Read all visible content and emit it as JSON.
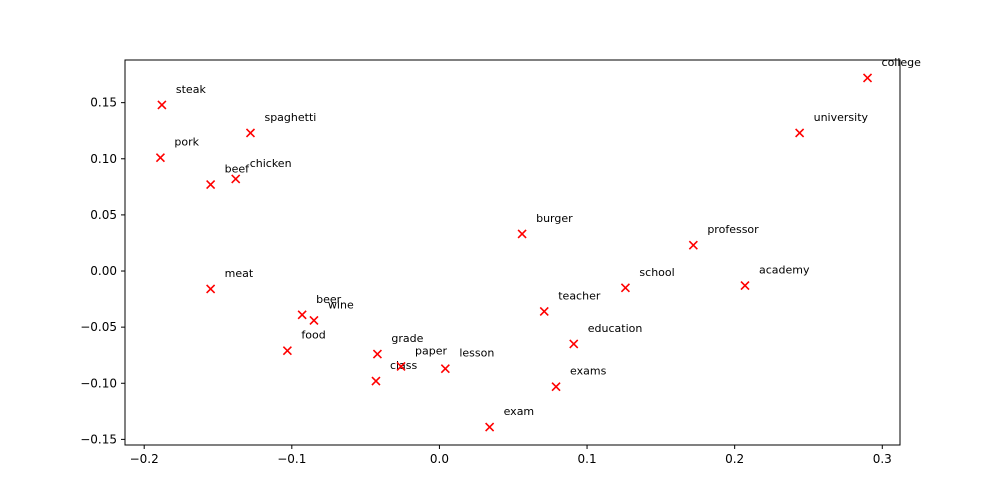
{
  "chart_data": {
    "type": "scatter",
    "title": "",
    "xlabel": "",
    "ylabel": "",
    "xlim": [
      -0.213,
      0.312
    ],
    "ylim": [
      -0.155,
      0.188
    ],
    "xticks": [
      -0.2,
      -0.1,
      0.0,
      0.1,
      0.2,
      0.3
    ],
    "xtick_labels": [
      "−0.2",
      "−0.1",
      "0.0",
      "0.1",
      "0.2",
      "0.3"
    ],
    "yticks": [
      -0.15,
      -0.1,
      -0.05,
      0.0,
      0.05,
      0.1,
      0.15
    ],
    "ytick_labels": [
      "−0.15",
      "−0.10",
      "−0.05",
      "0.00",
      "0.05",
      "0.10",
      "0.15"
    ],
    "grid": false,
    "marker": "x",
    "marker_color": "#ff0000",
    "points": [
      {
        "label": "steak",
        "x": -0.188,
        "y": 0.148
      },
      {
        "label": "spaghetti",
        "x": -0.128,
        "y": 0.123
      },
      {
        "label": "pork",
        "x": -0.189,
        "y": 0.101
      },
      {
        "label": "beef",
        "x": -0.155,
        "y": 0.077
      },
      {
        "label": "chicken",
        "x": -0.138,
        "y": 0.082
      },
      {
        "label": "meat",
        "x": -0.155,
        "y": -0.016
      },
      {
        "label": "beer",
        "x": -0.093,
        "y": -0.039
      },
      {
        "label": "wine",
        "x": -0.085,
        "y": -0.044
      },
      {
        "label": "food",
        "x": -0.103,
        "y": -0.071
      },
      {
        "label": "grade",
        "x": -0.042,
        "y": -0.074
      },
      {
        "label": "class",
        "x": -0.043,
        "y": -0.098
      },
      {
        "label": "paper",
        "x": -0.026,
        "y": -0.085
      },
      {
        "label": "lesson",
        "x": 0.004,
        "y": -0.087
      },
      {
        "label": "exam",
        "x": 0.034,
        "y": -0.139
      },
      {
        "label": "burger",
        "x": 0.056,
        "y": 0.033
      },
      {
        "label": "teacher",
        "x": 0.071,
        "y": -0.036
      },
      {
        "label": "education",
        "x": 0.091,
        "y": -0.065
      },
      {
        "label": "exams",
        "x": 0.079,
        "y": -0.103
      },
      {
        "label": "school",
        "x": 0.126,
        "y": -0.015
      },
      {
        "label": "professor",
        "x": 0.172,
        "y": 0.023
      },
      {
        "label": "academy",
        "x": 0.207,
        "y": -0.013
      },
      {
        "label": "university",
        "x": 0.244,
        "y": 0.123
      },
      {
        "label": "college",
        "x": 0.29,
        "y": 0.172
      }
    ]
  }
}
